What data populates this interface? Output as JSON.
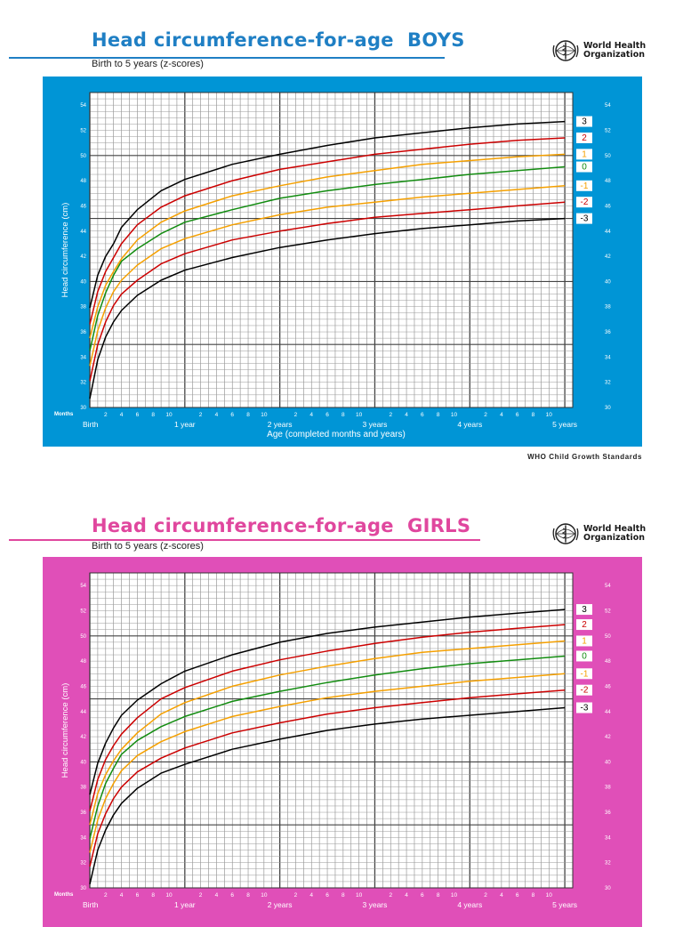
{
  "boys": {
    "title": "Head circumference-for-age  BOYS",
    "subtitle": "Birth to 5 years (z-scores)",
    "organization_line1": "World Health",
    "organization_line2": "Organization",
    "footer": "WHO Child Growth Standards",
    "colors": {
      "panel": "#0095d6",
      "title": "#1f7fc4"
    },
    "chart_data": {
      "type": "line",
      "xlabel": "Age (completed months and years)",
      "ylabel": "Head circumference (cm)",
      "ylim": [
        30,
        55
      ],
      "xlim": [
        0,
        61
      ],
      "y_ticks": [
        30,
        32,
        34,
        36,
        38,
        40,
        42,
        44,
        46,
        48,
        50,
        52,
        54
      ],
      "month_tick_label": "Months",
      "month_ticks": [
        {
          "m": 2,
          "label": "2"
        },
        {
          "m": 4,
          "label": "4"
        },
        {
          "m": 6,
          "label": "6"
        },
        {
          "m": 8,
          "label": "8"
        },
        {
          "m": 10,
          "label": "10"
        },
        {
          "m": 14,
          "label": "2"
        },
        {
          "m": 16,
          "label": "4"
        },
        {
          "m": 18,
          "label": "6"
        },
        {
          "m": 20,
          "label": "8"
        },
        {
          "m": 22,
          "label": "10"
        },
        {
          "m": 26,
          "label": "2"
        },
        {
          "m": 28,
          "label": "4"
        },
        {
          "m": 30,
          "label": "6"
        },
        {
          "m": 32,
          "label": "8"
        },
        {
          "m": 34,
          "label": "10"
        },
        {
          "m": 38,
          "label": "2"
        },
        {
          "m": 40,
          "label": "4"
        },
        {
          "m": 42,
          "label": "6"
        },
        {
          "m": 44,
          "label": "8"
        },
        {
          "m": 46,
          "label": "10"
        },
        {
          "m": 50,
          "label": "2"
        },
        {
          "m": 52,
          "label": "4"
        },
        {
          "m": 54,
          "label": "6"
        },
        {
          "m": 56,
          "label": "8"
        },
        {
          "m": 58,
          "label": "10"
        }
      ],
      "year_ticks": [
        {
          "m": 0,
          "label": "Birth"
        },
        {
          "m": 12,
          "label": "1 year"
        },
        {
          "m": 24,
          "label": "2 years"
        },
        {
          "m": 36,
          "label": "3 years"
        },
        {
          "m": 48,
          "label": "4 years"
        },
        {
          "m": 60,
          "label": "5 years"
        }
      ],
      "x": [
        0,
        1,
        2,
        3,
        4,
        6,
        9,
        12,
        18,
        24,
        30,
        36,
        42,
        48,
        54,
        60
      ],
      "series": [
        {
          "name": "3",
          "color": "#000000",
          "values": [
            37.9,
            40.5,
            42.0,
            43.0,
            44.3,
            45.7,
            47.2,
            48.1,
            49.3,
            50.1,
            50.8,
            51.4,
            51.8,
            52.2,
            52.5,
            52.7
          ]
        },
        {
          "name": "2",
          "color": "#cc0000",
          "values": [
            36.6,
            39.2,
            40.8,
            41.9,
            43.0,
            44.5,
            45.9,
            46.8,
            48.0,
            48.9,
            49.5,
            50.1,
            50.5,
            50.9,
            51.2,
            51.4
          ]
        },
        {
          "name": "1",
          "color": "#f5a000",
          "values": [
            35.5,
            38.0,
            39.7,
            40.8,
            41.8,
            43.3,
            44.7,
            45.6,
            46.8,
            47.6,
            48.3,
            48.8,
            49.3,
            49.6,
            49.9,
            50.1
          ]
        },
        {
          "name": "0",
          "color": "#128c10",
          "values": [
            34.5,
            37.3,
            39.1,
            40.5,
            41.6,
            42.6,
            43.8,
            44.7,
            45.7,
            46.6,
            47.2,
            47.7,
            48.1,
            48.5,
            48.8,
            49.1
          ]
        },
        {
          "name": "-1",
          "color": "#f5a000",
          "values": [
            33.3,
            36.1,
            37.9,
            39.2,
            40.1,
            41.3,
            42.6,
            43.4,
            44.5,
            45.3,
            45.9,
            46.3,
            46.7,
            47.0,
            47.3,
            47.6
          ]
        },
        {
          "name": "-2",
          "color": "#cc0000",
          "values": [
            32.1,
            35.0,
            36.8,
            38.1,
            39.0,
            40.1,
            41.4,
            42.2,
            43.3,
            44.0,
            44.6,
            45.1,
            45.4,
            45.7,
            46.0,
            46.3
          ]
        },
        {
          "name": "-3",
          "color": "#000000",
          "values": [
            30.7,
            33.8,
            35.6,
            36.8,
            37.7,
            38.9,
            40.1,
            40.9,
            41.9,
            42.7,
            43.3,
            43.8,
            44.2,
            44.5,
            44.8,
            45.0
          ]
        }
      ]
    }
  },
  "girls": {
    "title": "Head circumference-for-age  GIRLS",
    "subtitle": "Birth to 5 years (z-scores)",
    "organization_line1": "World Health",
    "organization_line2": "Organization",
    "colors": {
      "panel": "#e04fb8",
      "title": "#e0479e"
    },
    "chart_data": {
      "type": "line",
      "xlabel": "",
      "ylabel": "Head circumference (cm)",
      "ylim": [
        30,
        55
      ],
      "xlim": [
        0,
        61
      ],
      "y_ticks": [
        30,
        32,
        34,
        36,
        38,
        40,
        42,
        44,
        46,
        48,
        50,
        52,
        54
      ],
      "month_tick_label": "Months",
      "month_ticks": [
        {
          "m": 2,
          "label": "2"
        },
        {
          "m": 4,
          "label": "4"
        },
        {
          "m": 6,
          "label": "6"
        },
        {
          "m": 8,
          "label": "8"
        },
        {
          "m": 10,
          "label": "10"
        },
        {
          "m": 14,
          "label": "2"
        },
        {
          "m": 16,
          "label": "4"
        },
        {
          "m": 18,
          "label": "6"
        },
        {
          "m": 20,
          "label": "8"
        },
        {
          "m": 22,
          "label": "10"
        },
        {
          "m": 26,
          "label": "2"
        },
        {
          "m": 28,
          "label": "4"
        },
        {
          "m": 30,
          "label": "6"
        },
        {
          "m": 32,
          "label": "8"
        },
        {
          "m": 34,
          "label": "10"
        },
        {
          "m": 38,
          "label": "2"
        },
        {
          "m": 40,
          "label": "4"
        },
        {
          "m": 42,
          "label": "6"
        },
        {
          "m": 44,
          "label": "8"
        },
        {
          "m": 46,
          "label": "10"
        },
        {
          "m": 50,
          "label": "2"
        },
        {
          "m": 52,
          "label": "4"
        },
        {
          "m": 54,
          "label": "6"
        },
        {
          "m": 56,
          "label": "8"
        },
        {
          "m": 58,
          "label": "10"
        }
      ],
      "year_ticks": [
        {
          "m": 0,
          "label": "Birth"
        },
        {
          "m": 12,
          "label": "1 year"
        },
        {
          "m": 24,
          "label": "2 years"
        },
        {
          "m": 36,
          "label": "3 years"
        },
        {
          "m": 48,
          "label": "4 years"
        },
        {
          "m": 60,
          "label": "5 years"
        }
      ],
      "x": [
        0,
        1,
        2,
        3,
        4,
        6,
        9,
        12,
        18,
        24,
        30,
        36,
        42,
        48,
        54,
        60
      ],
      "series": [
        {
          "name": "3",
          "color": "#000000",
          "values": [
            37.4,
            39.9,
            41.5,
            42.7,
            43.7,
            44.9,
            46.2,
            47.2,
            48.5,
            49.5,
            50.2,
            50.7,
            51.1,
            51.5,
            51.8,
            52.1
          ]
        },
        {
          "name": "2",
          "color": "#cc0000",
          "values": [
            36.1,
            38.6,
            40.2,
            41.3,
            42.2,
            43.5,
            45.0,
            45.9,
            47.2,
            48.1,
            48.8,
            49.4,
            49.9,
            50.3,
            50.6,
            50.9
          ]
        },
        {
          "name": "1",
          "color": "#f5a000",
          "values": [
            35.0,
            37.5,
            39.0,
            40.1,
            41.0,
            42.3,
            43.8,
            44.7,
            46.0,
            46.9,
            47.6,
            48.2,
            48.7,
            49.0,
            49.3,
            49.6
          ]
        },
        {
          "name": "0",
          "color": "#128c10",
          "values": [
            33.9,
            36.5,
            38.3,
            39.5,
            40.6,
            41.7,
            42.8,
            43.6,
            44.8,
            45.6,
            46.3,
            46.9,
            47.4,
            47.8,
            48.1,
            48.4
          ]
        },
        {
          "name": "-1",
          "color": "#f5a000",
          "values": [
            32.8,
            35.4,
            37.1,
            38.3,
            39.3,
            40.5,
            41.6,
            42.4,
            43.6,
            44.4,
            45.1,
            45.6,
            46.0,
            46.4,
            46.7,
            47.0
          ]
        },
        {
          "name": "-2",
          "color": "#cc0000",
          "values": [
            31.7,
            34.3,
            35.9,
            37.1,
            38.0,
            39.2,
            40.3,
            41.1,
            42.3,
            43.1,
            43.8,
            44.3,
            44.7,
            45.1,
            45.4,
            45.7
          ]
        },
        {
          "name": "-3",
          "color": "#000000",
          "values": [
            30.3,
            33.0,
            34.6,
            35.8,
            36.7,
            37.9,
            39.1,
            39.8,
            41.0,
            41.8,
            42.5,
            43.0,
            43.4,
            43.7,
            44.0,
            44.3
          ]
        }
      ]
    }
  }
}
